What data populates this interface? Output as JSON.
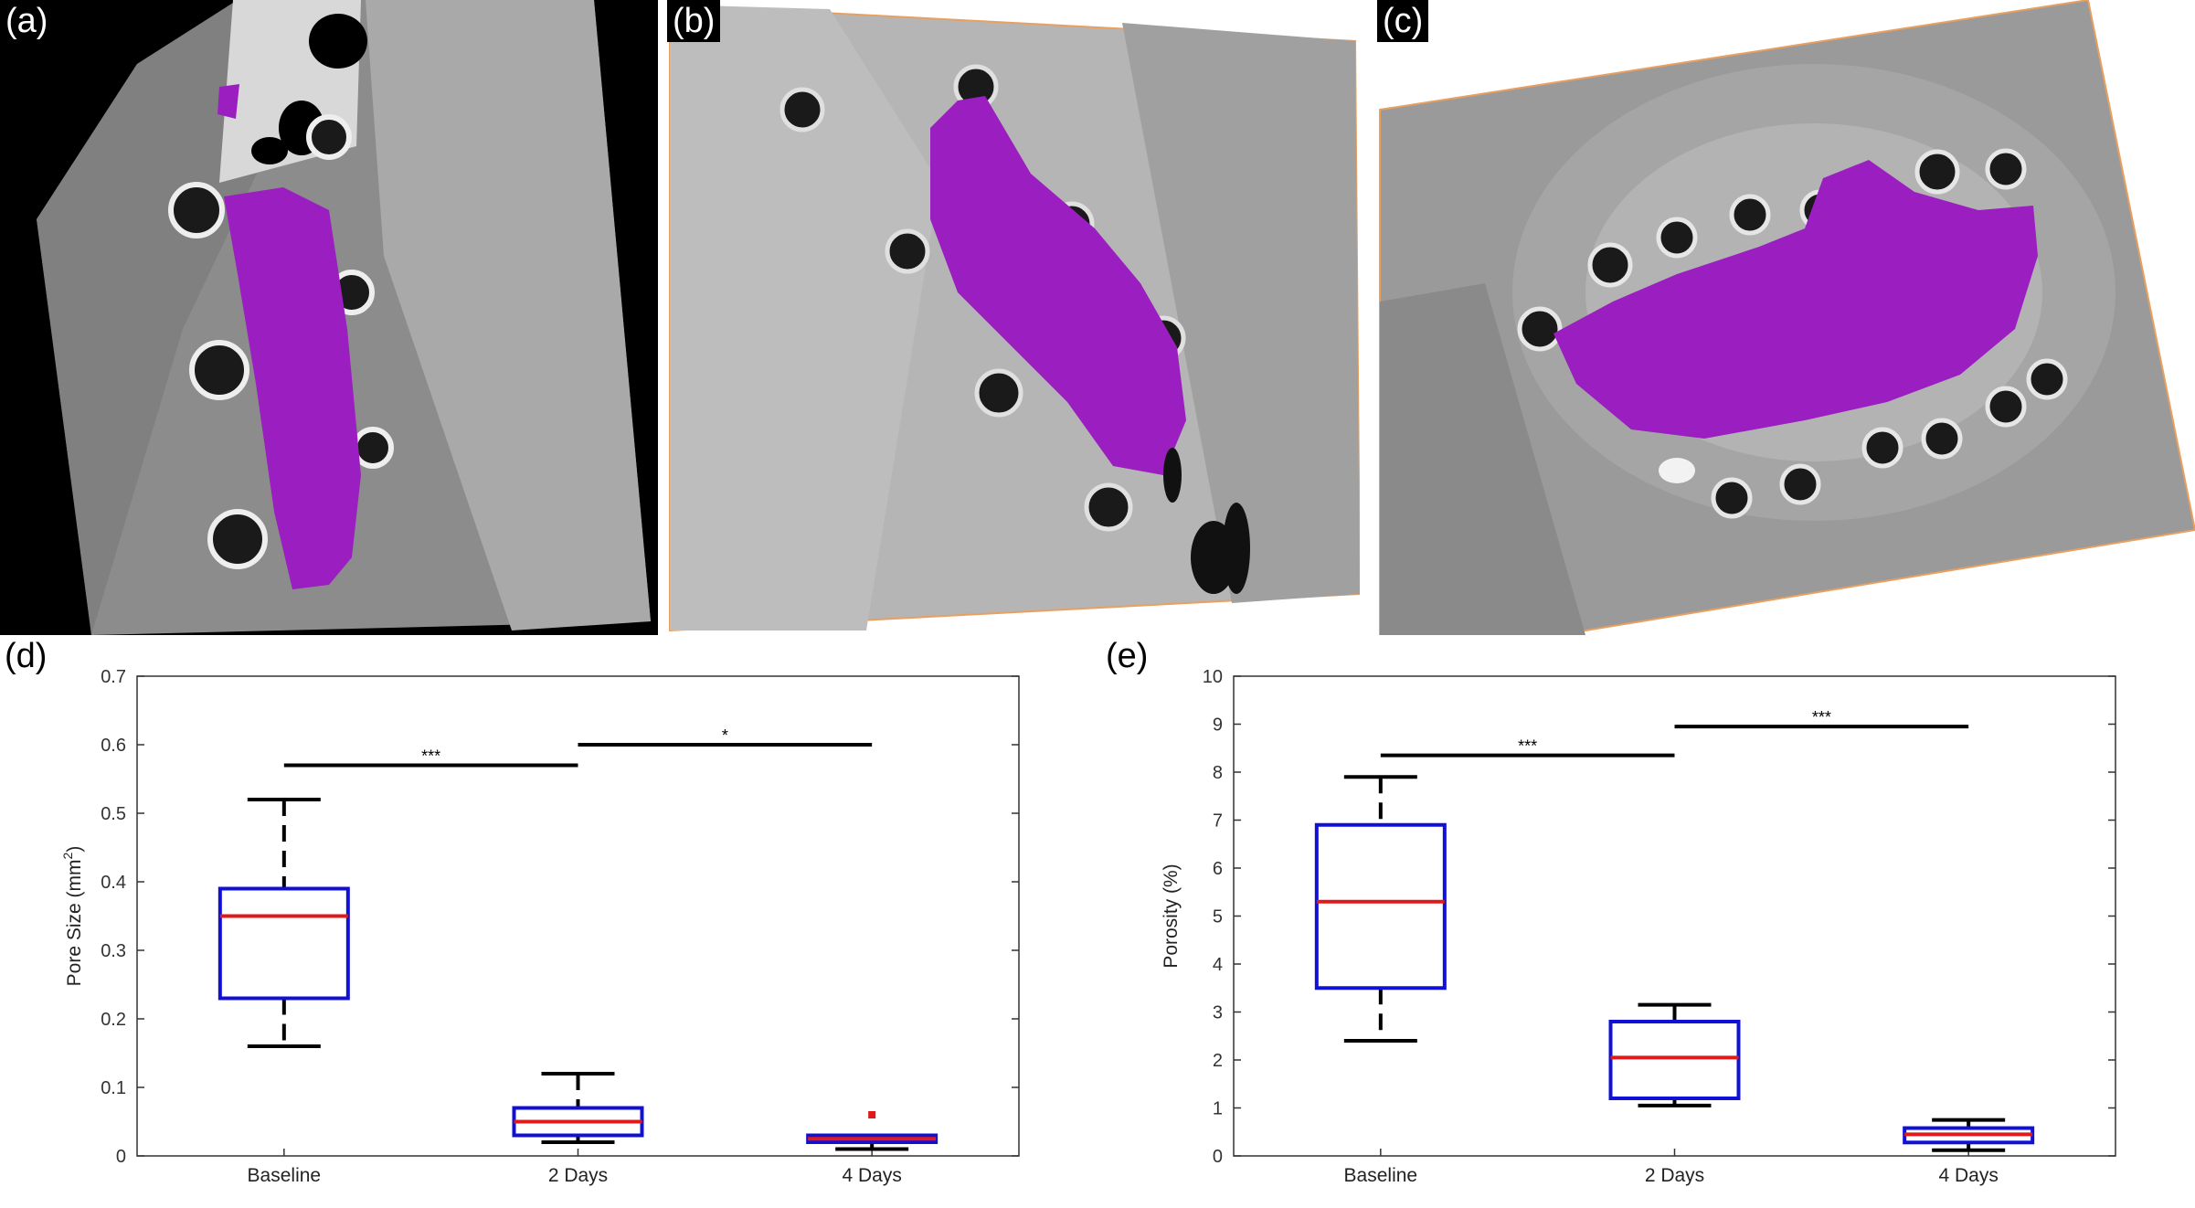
{
  "figure": {
    "panel_labels": [
      "(a)",
      "(b)",
      "(c)",
      "(d)",
      "(e)"
    ],
    "colors": {
      "segmentation": "#9b1fc0",
      "box": "#1010d8",
      "median": "#e01a1a",
      "whisker": "#000000",
      "outlier": "#e01a1a",
      "image_border": "#e8a060"
    }
  },
  "chart_data": [
    {
      "type": "box",
      "ylabel_text": "Pore Size (mm",
      "ylabel_sup": "2",
      "ylabel_close": ")",
      "ylim": [
        0,
        0.7
      ],
      "yticks": [
        "0",
        "0.1",
        "0.2",
        "0.3",
        "0.4",
        "0.5",
        "0.6",
        "0.7"
      ],
      "categories": [
        "Baseline",
        "2 Days",
        "4 Days"
      ],
      "boxes": [
        {
          "category": "Baseline",
          "min": 0.16,
          "q1": 0.23,
          "median": 0.35,
          "q3": 0.39,
          "max": 0.52,
          "outliers": []
        },
        {
          "category": "2 Days",
          "min": 0.02,
          "q1": 0.03,
          "median": 0.05,
          "q3": 0.07,
          "max": 0.12,
          "outliers": []
        },
        {
          "category": "4 Days",
          "min": 0.01,
          "q1": 0.02,
          "median": 0.025,
          "q3": 0.03,
          "max": 0.03,
          "outliers": [
            0.06
          ]
        }
      ],
      "significance": [
        {
          "from": "Baseline",
          "to": "2 Days",
          "y": 0.57,
          "label": "***"
        },
        {
          "from": "2 Days",
          "to": "4 Days",
          "y": 0.6,
          "label": "*"
        }
      ]
    },
    {
      "type": "box",
      "ylabel_text": "Porosity (%)",
      "ylabel_sup": "",
      "ylabel_close": "",
      "ylim": [
        0,
        10
      ],
      "yticks": [
        "0",
        "1",
        "2",
        "3",
        "4",
        "5",
        "6",
        "7",
        "8",
        "9",
        "10"
      ],
      "categories": [
        "Baseline",
        "2 Days",
        "4 Days"
      ],
      "boxes": [
        {
          "category": "Baseline",
          "min": 2.4,
          "q1": 3.5,
          "median": 5.3,
          "q3": 6.9,
          "max": 7.9,
          "outliers": []
        },
        {
          "category": "2 Days",
          "min": 1.05,
          "q1": 1.2,
          "median": 2.05,
          "q3": 2.8,
          "max": 3.15,
          "outliers": []
        },
        {
          "category": "4 Days",
          "min": 0.12,
          "q1": 0.28,
          "median": 0.45,
          "q3": 0.58,
          "max": 0.75,
          "outliers": []
        }
      ],
      "significance": [
        {
          "from": "Baseline",
          "to": "2 Days",
          "y": 8.35,
          "label": "***"
        },
        {
          "from": "2 Days",
          "to": "4 Days",
          "y": 8.95,
          "label": "***"
        }
      ]
    }
  ]
}
